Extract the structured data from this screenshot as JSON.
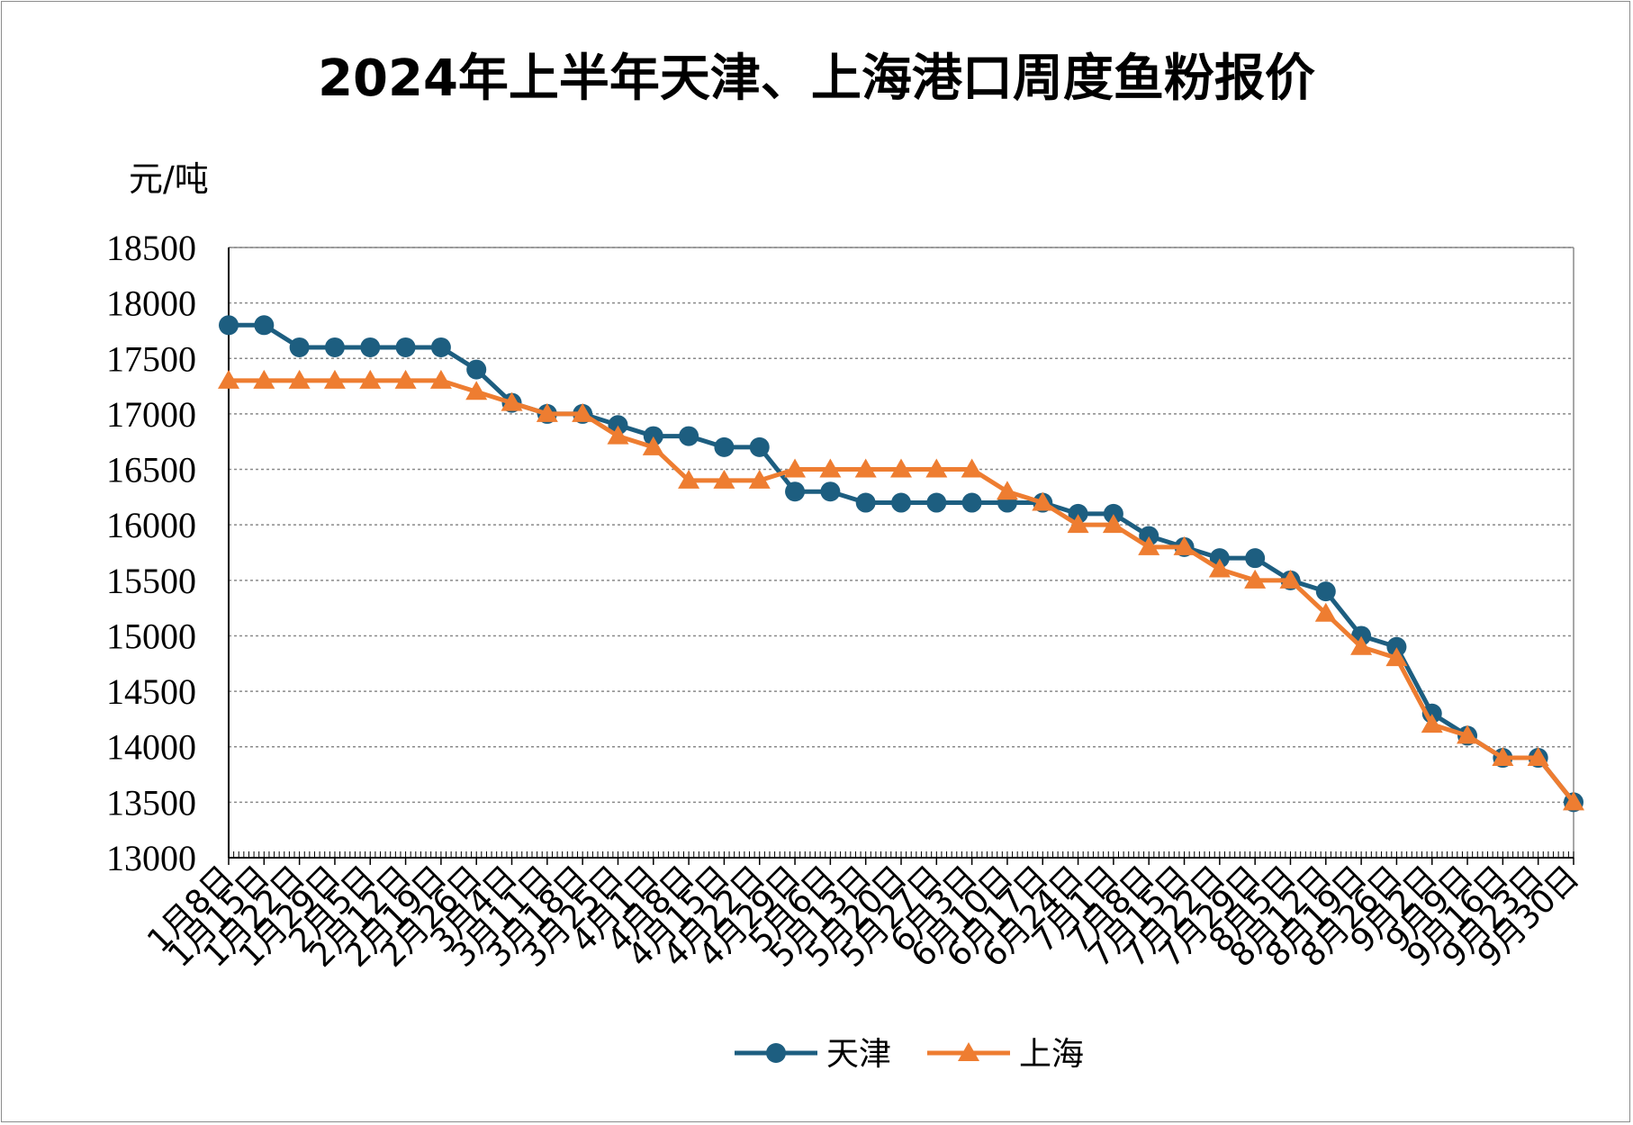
{
  "chart_data": {
    "type": "line",
    "title": "2024年上半年天津、上海港口周度鱼粉报价",
    "ylabel": "元/吨",
    "xlabel": "",
    "ylim": [
      13000,
      18500
    ],
    "yticks": [
      13000,
      13500,
      14000,
      14500,
      15000,
      15500,
      16000,
      16500,
      17000,
      17500,
      18000,
      18500
    ],
    "grid": true,
    "legend": "bottom",
    "categories": [
      "1月8日",
      "1月15日",
      "1月22日",
      "1月29日",
      "2月5日",
      "2月12日",
      "2月19日",
      "2月26日",
      "3月4日",
      "3月11日",
      "3月18日",
      "3月25日",
      "4月1日",
      "4月8日",
      "4月15日",
      "4月22日",
      "4月29日",
      "5月6日",
      "5月13日",
      "5月20日",
      "5月27日",
      "6月3日",
      "6月10日",
      "6月17日",
      "6月24日",
      "7月1日",
      "7月8日",
      "7月15日",
      "7月22日",
      "7月29日",
      "8月5日",
      "8月12日",
      "8月19日",
      "8月26日",
      "9月2日",
      "9月9日",
      "9月16日",
      "9月23日",
      "9月30日"
    ],
    "series": [
      {
        "name": "天津",
        "color": "#1d5e80",
        "marker": "circle",
        "values": [
          17800,
          17800,
          17600,
          17600,
          17600,
          17600,
          17600,
          17400,
          17100,
          17000,
          17000,
          16900,
          16800,
          16800,
          16700,
          16700,
          16300,
          16300,
          16200,
          16200,
          16200,
          16200,
          16200,
          16200,
          16100,
          16100,
          15900,
          15800,
          15700,
          15700,
          15500,
          15400,
          15000,
          14900,
          14300,
          14100,
          13900,
          13900,
          13500
        ]
      },
      {
        "name": "上海",
        "color": "#ee7d31",
        "marker": "triangle",
        "values": [
          17300,
          17300,
          17300,
          17300,
          17300,
          17300,
          17300,
          17200,
          17100,
          17000,
          17000,
          16800,
          16700,
          16400,
          16400,
          16400,
          16500,
          16500,
          16500,
          16500,
          16500,
          16500,
          16300,
          16200,
          16000,
          16000,
          15800,
          15800,
          15600,
          15500,
          15500,
          15200,
          14900,
          14800,
          14200,
          14100,
          13900,
          13900,
          13500
        ]
      }
    ]
  }
}
